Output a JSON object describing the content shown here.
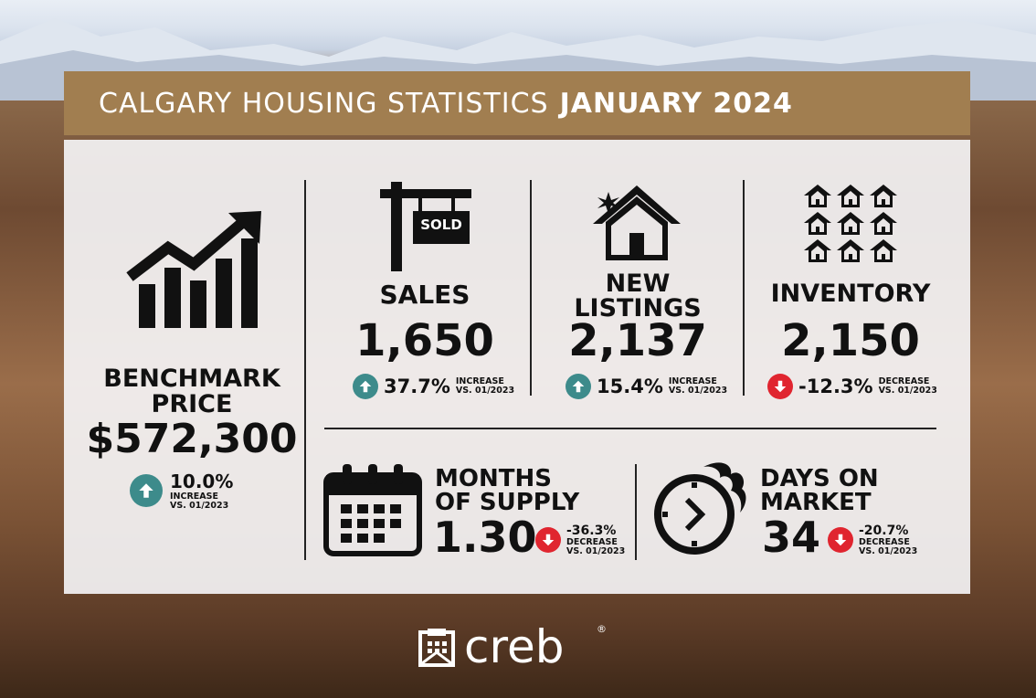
{
  "banner": {
    "title": "CALGARY HOUSING STATISTICS",
    "period": "JANUARY 2024"
  },
  "benchmark": {
    "label_line1": "BENCHMARK",
    "label_line2": "PRICE",
    "value": "$572,300",
    "change": "10.0%",
    "direction": "INCREASE",
    "vs": "VS. 01/2023"
  },
  "sales": {
    "label": "SALES",
    "value": "1,650",
    "change": "37.7%",
    "direction": "INCREASE",
    "vs": "VS. 01/2023",
    "sign_text": "SOLD"
  },
  "new_listings": {
    "label_line1": "NEW",
    "label_line2": "LISTINGS",
    "value": "2,137",
    "change": "15.4%",
    "direction": "INCREASE",
    "vs": "VS. 01/2023"
  },
  "inventory": {
    "label": "INVENTORY",
    "value": "2,150",
    "change": "-12.3%",
    "direction": "DECREASE",
    "vs": "VS. 01/2023"
  },
  "months_supply": {
    "label_line1": "MONTHS",
    "label_line2": "OF SUPPLY",
    "value": "1.30",
    "change": "-36.3%",
    "direction": "DECREASE",
    "vs": "VS. 01/2023"
  },
  "days_on_market": {
    "label_line1": "DAYS ON",
    "label_line2": "MARKET",
    "value": "34",
    "change": "-20.7%",
    "direction": "DECREASE",
    "vs": "VS. 01/2023"
  },
  "logo": {
    "text": "creb",
    "mark": "®"
  },
  "colors": {
    "banner": "#a17e50",
    "increase": "#3d8b8b",
    "decrease": "#e0252f"
  }
}
